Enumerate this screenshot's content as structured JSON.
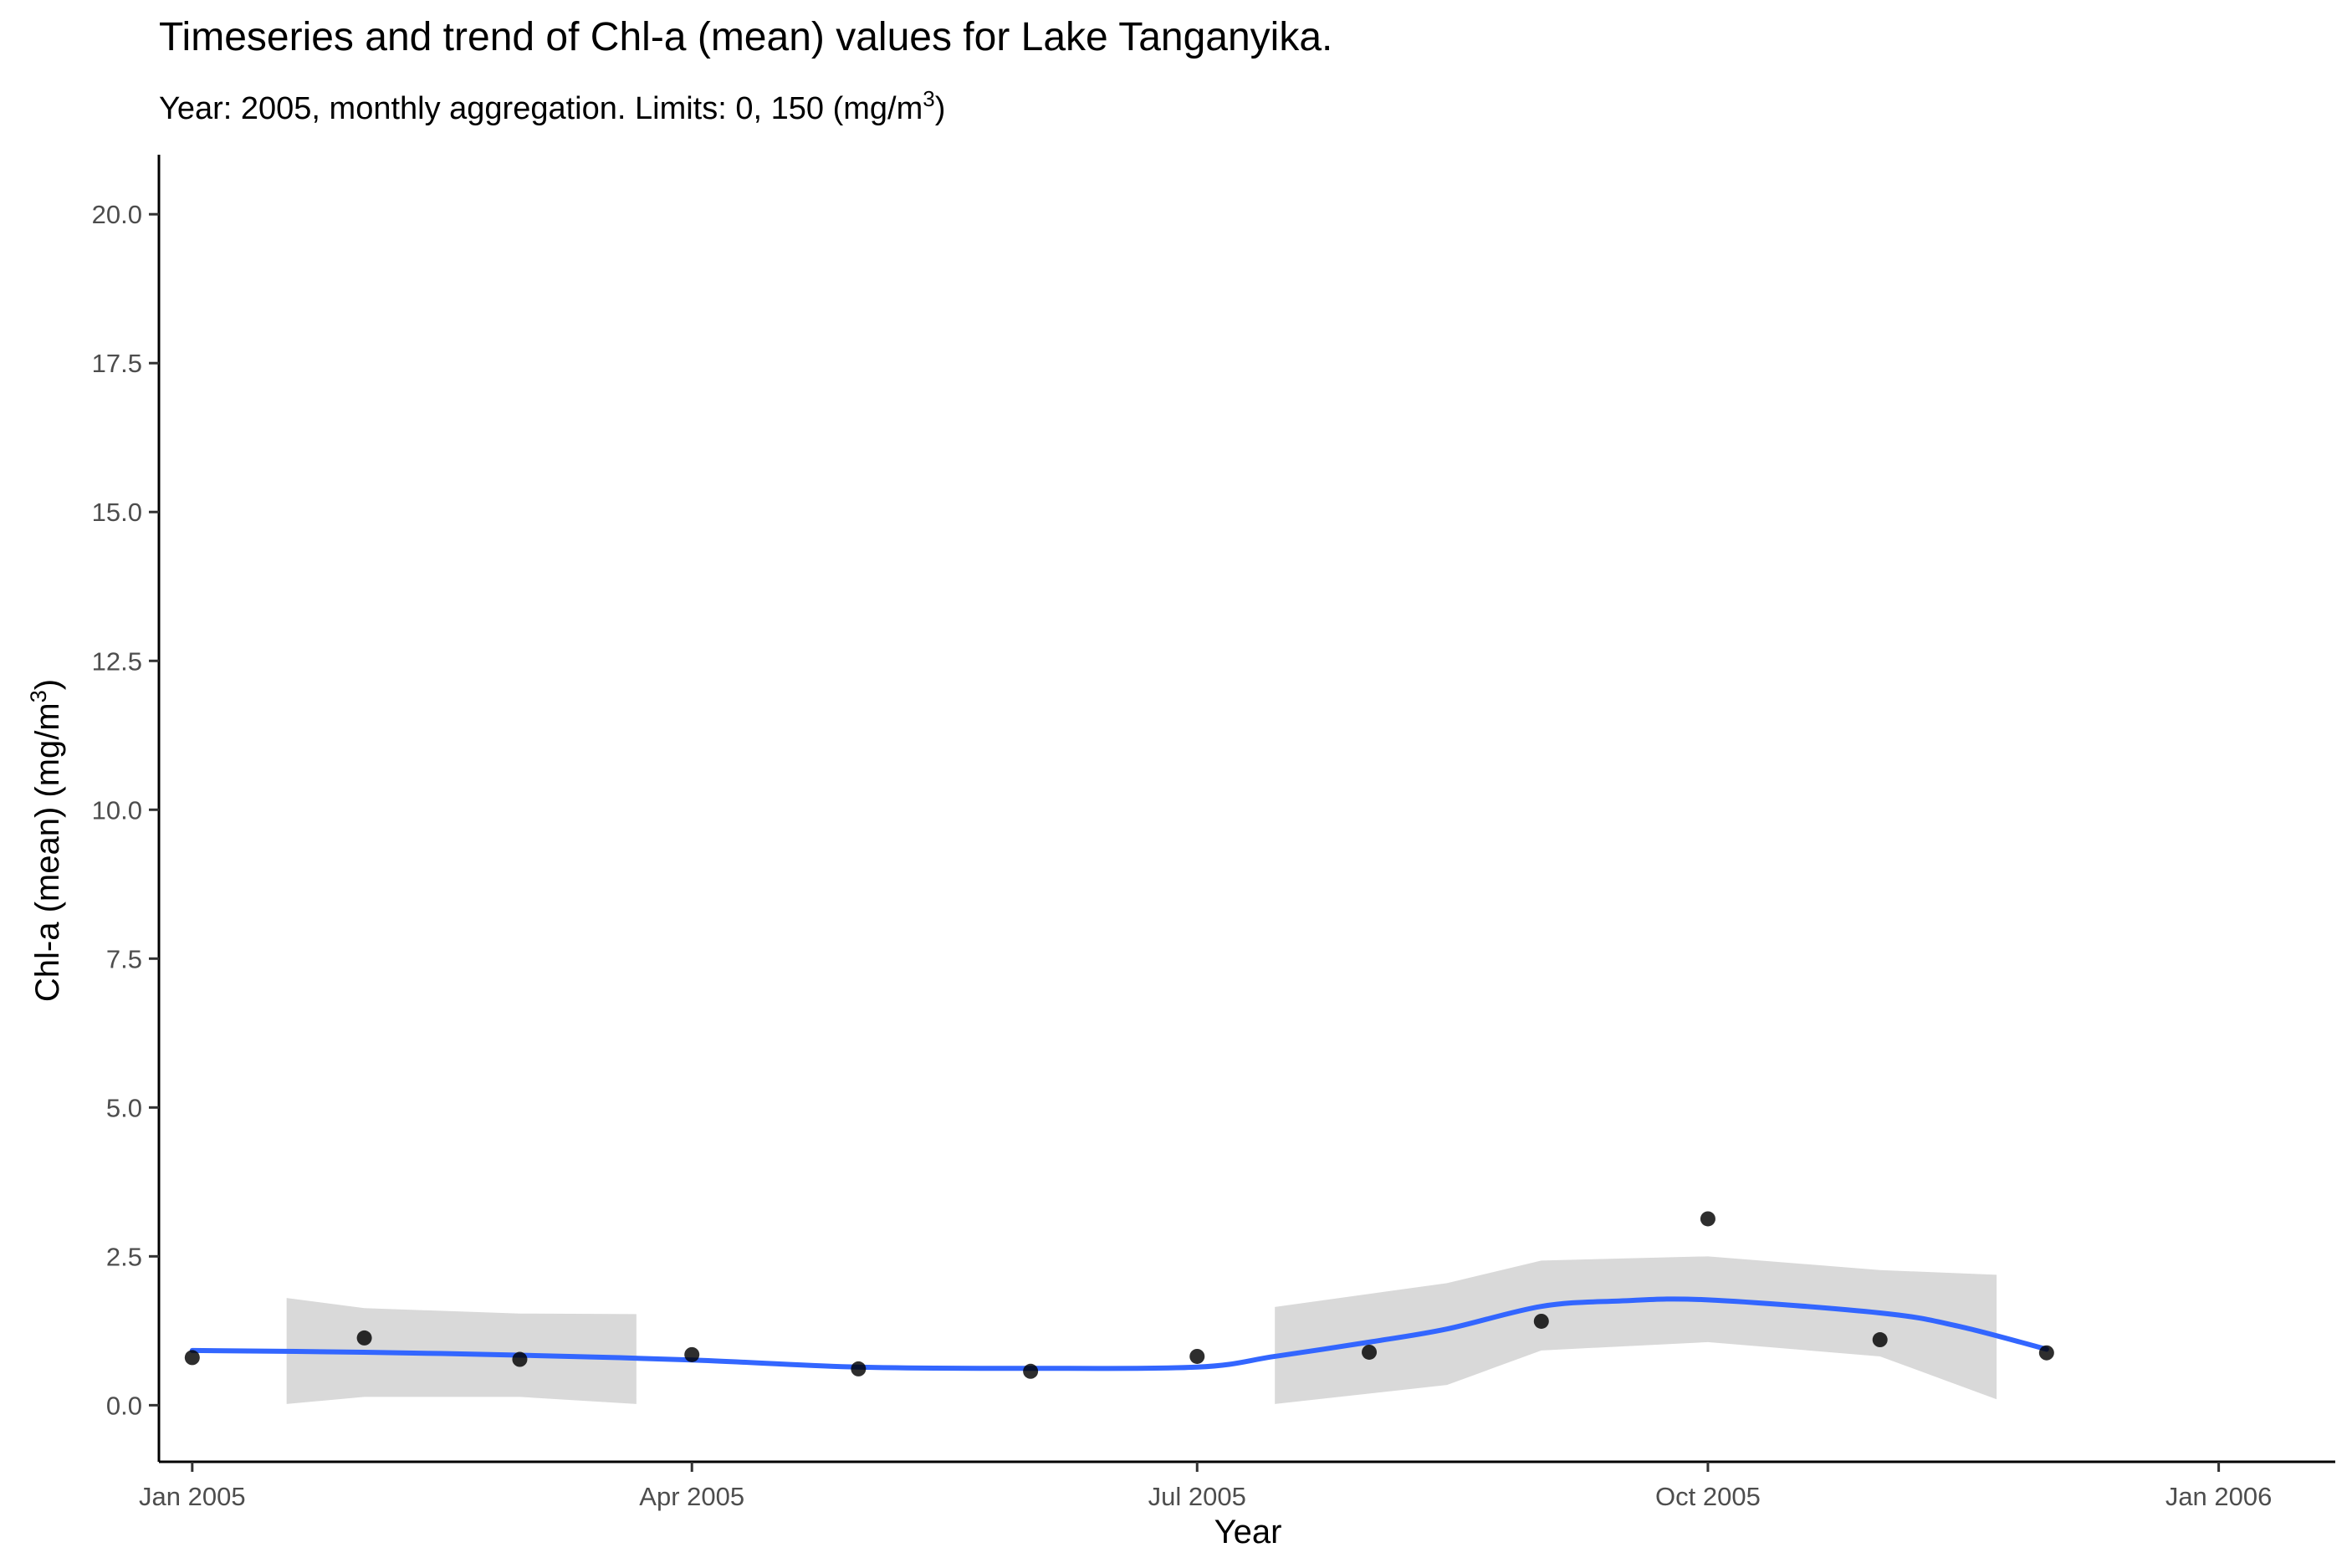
{
  "chart_data": {
    "type": "scatter",
    "title": "Timeseries  and trend of Chl-a (mean) values for Lake Tanganyika.",
    "subtitle_prefix": "Year: 2005, monthly aggregation. Limits: 0, 150 ",
    "subtitle_unit": "(mg/m",
    "subtitle_unit_sup": "3",
    "subtitle_unit_close": ")",
    "xlabel": "Year",
    "ylabel_prefix": "Chl-a (mean) (mg/m",
    "ylabel_sup": "3",
    "ylabel_close": ")",
    "xlim": [
      "2004-12-26",
      "2006-01-22"
    ],
    "ylim": [
      -0.95,
      21.0
    ],
    "x_ticks": [
      {
        "date": "2005-01-01",
        "label": "Jan 2005"
      },
      {
        "date": "2005-04-01",
        "label": "Apr 2005"
      },
      {
        "date": "2005-07-01",
        "label": "Jul 2005"
      },
      {
        "date": "2005-10-01",
        "label": "Oct 2005"
      },
      {
        "date": "2006-01-01",
        "label": "Jan 2006"
      }
    ],
    "y_ticks": [
      {
        "value": 0,
        "label": "0.0"
      },
      {
        "value": 2.5,
        "label": "2.5"
      },
      {
        "value": 5,
        "label": "5.0"
      },
      {
        "value": 7.5,
        "label": "7.5"
      },
      {
        "value": 10,
        "label": "10.0"
      },
      {
        "value": 12.5,
        "label": "12.5"
      },
      {
        "value": 15,
        "label": "15.0"
      },
      {
        "value": 17.5,
        "label": "17.5"
      },
      {
        "value": 20,
        "label": "20.0"
      }
    ],
    "points": [
      {
        "x": "2005-01-01",
        "y": 0.8
      },
      {
        "x": "2005-02-01",
        "y": 1.13
      },
      {
        "x": "2005-03-01",
        "y": 0.77
      },
      {
        "x": "2005-04-01",
        "y": 0.85
      },
      {
        "x": "2005-05-01",
        "y": 0.61
      },
      {
        "x": "2005-06-01",
        "y": 0.57
      },
      {
        "x": "2005-07-01",
        "y": 0.82
      },
      {
        "x": "2005-08-01",
        "y": 0.89
      },
      {
        "x": "2005-09-01",
        "y": 1.41
      },
      {
        "x": "2005-10-01",
        "y": 3.13
      },
      {
        "x": "2005-11-01",
        "y": 1.1
      },
      {
        "x": "2005-12-01",
        "y": 0.88
      }
    ],
    "trend": [
      {
        "x": "2005-01-01",
        "y": 0.92
      },
      {
        "x": "2005-02-01",
        "y": 0.89
      },
      {
        "x": "2005-03-01",
        "y": 0.84
      },
      {
        "x": "2005-04-01",
        "y": 0.76
      },
      {
        "x": "2005-05-01",
        "y": 0.64
      },
      {
        "x": "2005-06-01",
        "y": 0.62
      },
      {
        "x": "2005-07-01",
        "y": 0.64
      },
      {
        "x": "2005-07-15",
        "y": 0.82
      },
      {
        "x": "2005-08-01",
        "y": 1.06
      },
      {
        "x": "2005-08-15",
        "y": 1.28
      },
      {
        "x": "2005-09-01",
        "y": 1.66
      },
      {
        "x": "2005-09-15",
        "y": 1.75
      },
      {
        "x": "2005-10-01",
        "y": 1.77
      },
      {
        "x": "2005-11-01",
        "y": 1.55
      },
      {
        "x": "2005-11-15",
        "y": 1.33
      },
      {
        "x": "2005-12-01",
        "y": 0.94
      }
    ],
    "ribbon_segments": [
      {
        "upper": [
          {
            "x": "2005-01-18",
            "y": 1.8
          },
          {
            "x": "2005-02-01",
            "y": 1.63
          },
          {
            "x": "2005-03-01",
            "y": 1.54
          },
          {
            "x": "2005-03-22",
            "y": 1.53
          }
        ],
        "lower": [
          {
            "x": "2005-01-18",
            "y": 0.02
          },
          {
            "x": "2005-02-01",
            "y": 0.14
          },
          {
            "x": "2005-03-01",
            "y": 0.14
          },
          {
            "x": "2005-03-22",
            "y": 0.02
          }
        ]
      },
      {
        "upper": [
          {
            "x": "2005-07-15",
            "y": 1.65
          },
          {
            "x": "2005-08-15",
            "y": 2.05
          },
          {
            "x": "2005-09-01",
            "y": 2.43
          },
          {
            "x": "2005-10-01",
            "y": 2.5
          },
          {
            "x": "2005-11-01",
            "y": 2.27
          },
          {
            "x": "2005-11-22",
            "y": 2.19
          }
        ],
        "lower": [
          {
            "x": "2005-07-15",
            "y": 0.02
          },
          {
            "x": "2005-08-15",
            "y": 0.34
          },
          {
            "x": "2005-09-01",
            "y": 0.92
          },
          {
            "x": "2005-10-01",
            "y": 1.06
          },
          {
            "x": "2005-11-01",
            "y": 0.82
          },
          {
            "x": "2005-11-22",
            "y": 0.1
          }
        ]
      }
    ],
    "colors": {
      "points": "#000000",
      "trend": "#3366ff",
      "ribbon": "#d9d9d9",
      "axis": "#000000",
      "tick_label": "#4d4d4d"
    }
  }
}
